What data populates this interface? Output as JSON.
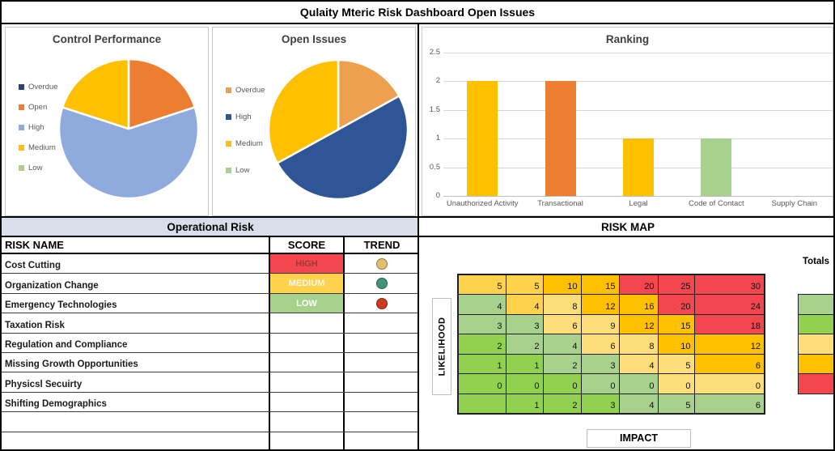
{
  "title": "Qulaity Mteric Risk Dashboard Open Issues",
  "chart_data": [
    {
      "type": "pie",
      "title": "Control Performance",
      "legend": [
        {
          "label": "Overdue",
          "color": "#264478"
        },
        {
          "label": "Open",
          "color": "#ED7D31"
        },
        {
          "label": "High",
          "color": "#8FAADC"
        },
        {
          "label": "Medium",
          "color": "#FFC000"
        },
        {
          "label": "Low",
          "color": "#A9D18E"
        }
      ],
      "slices": [
        {
          "label": "Open",
          "value": 20,
          "color": "#ED7D31"
        },
        {
          "label": "High",
          "value": 60,
          "color": "#8FAADC"
        },
        {
          "label": "Medium",
          "value": 20,
          "color": "#FFC000"
        }
      ],
      "legend_position": "left"
    },
    {
      "type": "pie",
      "title": "Open Issues",
      "legend": [
        {
          "label": "Overdue",
          "color": "#EDA04F"
        },
        {
          "label": "High",
          "color": "#2F5597"
        },
        {
          "label": "Medium",
          "color": "#FFC000"
        },
        {
          "label": "Low",
          "color": "#A9D18E"
        }
      ],
      "slices": [
        {
          "label": "Overdue",
          "value": 17,
          "color": "#EDA04F"
        },
        {
          "label": "High",
          "value": 50,
          "color": "#2F5597"
        },
        {
          "label": "Medium",
          "value": 33,
          "color": "#FFC000"
        }
      ],
      "legend_position": "left"
    },
    {
      "type": "bar",
      "title": "Ranking",
      "categories": [
        "Unauthorized Activity",
        "Transactional",
        "Legal",
        "Code of Contact",
        "Supply Chain"
      ],
      "values": [
        2,
        2,
        1,
        1,
        0
      ],
      "bar_colors": [
        "#FFC000",
        "#ED7D31",
        "#FFC000",
        "#A9D18E",
        "#FFC000"
      ],
      "yticks": [
        0,
        0.5,
        1,
        1.5,
        2,
        2.5
      ],
      "ylim": [
        0,
        2.5
      ],
      "grid": true,
      "xlabel": "",
      "ylabel": ""
    }
  ],
  "operational_risk": {
    "header": "Operational Risk",
    "columns": [
      "RISK NAME",
      "SCORE",
      "TREND"
    ],
    "rows": [
      {
        "name": "Cost Cutting",
        "score": "HIGH",
        "score_bg": "#F4464F",
        "score_color": "#9C3A38",
        "trend_color": "#E3BE6B"
      },
      {
        "name": "Organization Change",
        "score": "MEDIUM",
        "score_bg": "#FFD24E",
        "score_color": "#FDF8EA",
        "trend_color": "#43937B"
      },
      {
        "name": "Emergency Technologies",
        "score": "LOW",
        "score_bg": "#A9D18E",
        "score_color": "#FFFFFF",
        "trend_color": "#CE3B21"
      },
      {
        "name": "Taxation Risk"
      },
      {
        "name": "Regulation and Compliance"
      },
      {
        "name": "Missing Growth Opportunities"
      },
      {
        "name": "Physicsl Secuirty"
      },
      {
        "name": "Shifting Demographics"
      },
      {
        "name": ""
      },
      {
        "name": ""
      }
    ]
  },
  "risk_map": {
    "header": "RISK MAP",
    "y_axis_label": "LIKELIHOOD",
    "x_axis_label": "IMPACT",
    "totals_label": "Totals",
    "palette": {
      "g": "#92D050",
      "G": "#A9D18E",
      "y": "#FFD24E",
      "Y": "#FFDD78",
      "o": "#FFC000",
      "r": "#F4464F"
    },
    "values": [
      [
        "5",
        "5",
        "10",
        "15",
        "20",
        "25",
        "30"
      ],
      [
        "4",
        "4",
        "8",
        "12",
        "16",
        "20",
        "24"
      ],
      [
        "3",
        "3",
        "6",
        "9",
        "12",
        "15",
        "18"
      ],
      [
        "2",
        "2",
        "4",
        "6",
        "8",
        "10",
        "12"
      ],
      [
        "1",
        "1",
        "2",
        "3",
        "4",
        "5",
        "6"
      ],
      [
        "0",
        "0",
        "0",
        "0",
        "0",
        "0",
        "0"
      ],
      [
        "",
        "1",
        "2",
        "3",
        "4",
        "5",
        "6"
      ]
    ],
    "colors": [
      [
        "y",
        "y",
        "o",
        "o",
        "r",
        "r",
        "r"
      ],
      [
        "G",
        "y",
        "Y",
        "o",
        "o",
        "r",
        "r"
      ],
      [
        "G",
        "G",
        "Y",
        "Y",
        "o",
        "o",
        "r"
      ],
      [
        "g",
        "G",
        "G",
        "Y",
        "Y",
        "o",
        "o"
      ],
      [
        "g",
        "g",
        "G",
        "G",
        "Y",
        "Y",
        "o"
      ],
      [
        "g",
        "g",
        "g",
        "G",
        "G",
        "Y",
        "Y"
      ],
      [
        "g",
        "g",
        "g",
        "g",
        "G",
        "G",
        "G"
      ]
    ],
    "totals_colors": [
      "G",
      "g",
      "Y",
      "o",
      "r"
    ]
  }
}
